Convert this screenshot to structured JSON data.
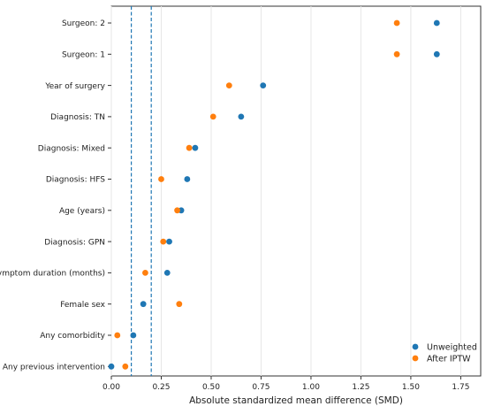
{
  "chart_data": {
    "type": "scatter",
    "orientation": "horizontal",
    "xlabel": "Absolute standardized mean difference (SMD)",
    "xlim": [
      0.0,
      1.85
    ],
    "xticks": [
      "0.00",
      "0.25",
      "0.50",
      "0.75",
      "1.00",
      "1.25",
      "1.50",
      "1.75"
    ],
    "xtick_values": [
      0,
      0.25,
      0.5,
      0.75,
      1.0,
      1.25,
      1.5,
      1.75
    ],
    "grid": "vertical",
    "reference_lines": [
      0.1,
      0.2
    ],
    "reference_line_color": "#1f77b4",
    "categories": [
      "Surgeon: 2",
      "Surgeon: 1",
      "Year of surgery",
      "Diagnosis: TN",
      "Diagnosis: Mixed",
      "Diagnosis: HFS",
      "Age (years)",
      "Diagnosis: GPN",
      "Symptom duration (months)",
      "Female sex",
      "Any comorbidity",
      "Any previous intervention"
    ],
    "series": [
      {
        "name": "Unweighted",
        "color": "#1f77b4",
        "values": [
          1.63,
          1.63,
          0.76,
          0.65,
          0.42,
          0.38,
          0.35,
          0.29,
          0.28,
          0.16,
          0.11,
          0.0
        ]
      },
      {
        "name": "After IPTW",
        "color": "#ff7f0e",
        "values": [
          1.43,
          1.43,
          0.59,
          0.51,
          0.39,
          0.25,
          0.33,
          0.26,
          0.17,
          0.34,
          0.03,
          0.07
        ]
      }
    ],
    "legend_position": "bottom-right"
  }
}
